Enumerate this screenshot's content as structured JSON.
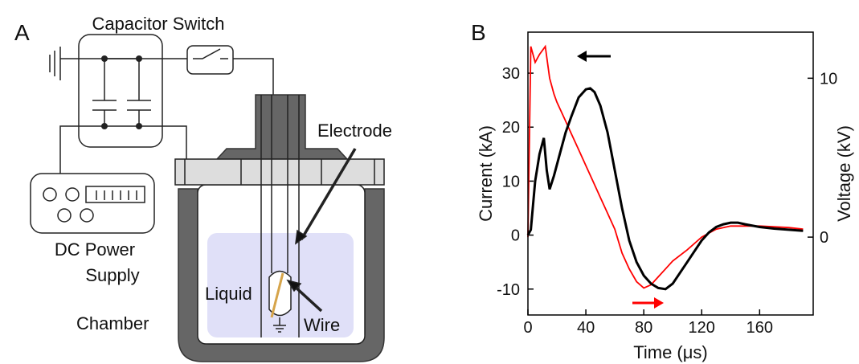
{
  "panel_labels": [
    "A",
    "B"
  ],
  "diagram": {
    "capacitor_switch": "Capacitor Switch",
    "electrode": "Electrode",
    "dc_power_supply": [
      "DC Power",
      "Supply"
    ],
    "liquid": "Liquid",
    "wire": "Wire",
    "chamber": "Chamber"
  },
  "chart_data": {
    "type": "line",
    "x_label": "Time (μs)",
    "y_label": "Current (kA)",
    "y2_label": "Voltage (kV)",
    "xlim": [
      0,
      197
    ],
    "xticks": [
      0,
      40,
      80,
      120,
      160
    ],
    "ylim": [
      -14.8,
      37.6
    ],
    "yticks": [
      -10,
      0,
      10,
      20,
      30
    ],
    "y2lim": [
      -4.9,
      12.9
    ],
    "y2ticks": [
      0,
      10
    ],
    "series": [
      {
        "name": "Current",
        "color": "#000000",
        "axis": "y",
        "x": [
          0,
          2,
          5,
          8,
          11,
          13,
          15,
          18,
          22,
          26,
          30,
          35,
          40,
          43,
          46,
          50,
          55,
          60,
          65,
          70,
          75,
          80,
          85,
          90,
          95,
          100,
          105,
          110,
          115,
          120,
          125,
          130,
          135,
          140,
          145,
          150,
          160,
          170,
          180,
          190
        ],
        "values": [
          0,
          1,
          10,
          15,
          18,
          12,
          8.5,
          11,
          15,
          19,
          22,
          25.5,
          27,
          27.2,
          26.5,
          24,
          19,
          12,
          5,
          -1,
          -5,
          -7.5,
          -9,
          -9.8,
          -10,
          -9,
          -7,
          -5,
          -3,
          -1,
          0.5,
          1.5,
          2,
          2.3,
          2.3,
          2,
          1.5,
          1.2,
          1,
          0.8
        ]
      },
      {
        "name": "Voltage",
        "color": "#ff0000",
        "axis": "y2",
        "x": [
          0,
          2,
          5,
          8,
          12,
          15,
          18,
          20,
          25,
          30,
          35,
          40,
          45,
          50,
          55,
          60,
          65,
          70,
          75,
          80,
          85,
          90,
          95,
          100,
          110,
          120,
          130,
          140,
          160,
          180,
          190
        ],
        "values": [
          0,
          12,
          11,
          11.5,
          12,
          10,
          9,
          8.5,
          7.5,
          6.5,
          5.5,
          4.5,
          3.5,
          2.5,
          1.5,
          0.5,
          -1,
          -2,
          -2.8,
          -3.2,
          -3,
          -2.5,
          -2,
          -1.5,
          -0.8,
          0,
          0.5,
          0.7,
          0.7,
          0.6,
          0.5
        ]
      }
    ]
  }
}
